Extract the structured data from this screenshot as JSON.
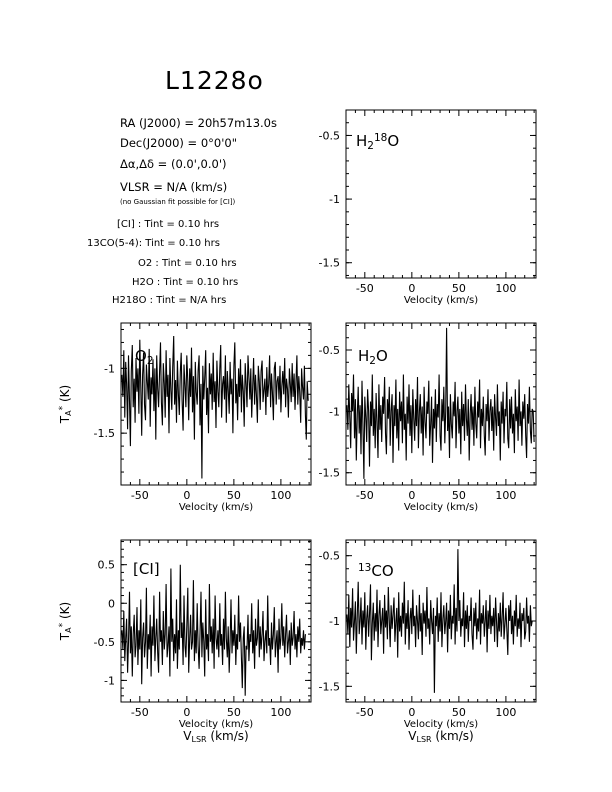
{
  "title": "L1228o",
  "info": {
    "ra": "RA (J2000) =  20h57m13.0s",
    "dec": "Dec(J2000) =  0°0'0\"",
    "offset": "Δα,Δδ = (0.0',0.0')",
    "vlsr": "VLSR  = N/A  (km/s)",
    "note": "(no Gaussian fit possible for [CI])",
    "integration": [
      "[CI] : Tint = 0.10 hrs",
      "13CO(5-4): Tint = 0.10 hrs",
      "O2 : Tint = 0.10 hrs",
      "H2O : Tint = 0.10 hrs",
      "H218O : Tint = N/A  hrs"
    ]
  },
  "chart_data": [
    {
      "id": "h218o",
      "type": "line",
      "label": "H218O",
      "xlabel": "Velocity (km/s)",
      "xlabel2": "",
      "ylabel": "",
      "xlim": [
        -70,
        132
      ],
      "ylim": [
        -1.62,
        -0.3
      ],
      "xticks": [
        -50,
        0,
        50,
        100
      ],
      "yticks": [
        -1.5,
        -1,
        -0.5
      ],
      "ytick_labels": [
        "-1.5",
        "-1",
        "-0.5"
      ],
      "series": []
    },
    {
      "id": "o2",
      "type": "line",
      "label": "O2",
      "xlabel": "Velocity (km/s)",
      "xlabel2": "",
      "ylabel": "TA* (K)",
      "xlim": [
        -70,
        132
      ],
      "ylim": [
        -1.9,
        -0.65
      ],
      "xticks": [
        -50,
        0,
        50,
        100
      ],
      "yticks": [
        -1.5,
        -1
      ],
      "ytick_labels": [
        "-1.5",
        "-1"
      ],
      "series": [
        {
          "x_start": -69,
          "x_step": 1.0,
          "values": [
            -1.05,
            -1.22,
            -0.86,
            -1.38,
            -0.95,
            -1.12,
            -1.47,
            -0.9,
            -1.25,
            -1.6,
            -1.02,
            -0.82,
            -1.3,
            -1.08,
            -1.42,
            -0.92,
            -1.18,
            -1.0,
            -1.35,
            -0.78,
            -1.15,
            -1.52,
            -1.05,
            -0.88,
            -1.28,
            -1.4,
            -0.97,
            -1.1,
            -1.24,
            -0.85,
            -1.45,
            -1.07,
            -1.2,
            -0.93,
            -1.33,
            -1.0,
            -1.55,
            -0.9,
            -1.16,
            -1.3,
            -1.02,
            -0.8,
            -1.26,
            -1.44,
            -0.96,
            -1.12,
            -1.38,
            -0.86,
            -1.22,
            -1.05,
            -1.5,
            -0.92,
            -1.17,
            -1.32,
            -0.99,
            -0.75,
            -1.28,
            -1.09,
            -1.42,
            -0.94,
            -1.2,
            -1.36,
            -1.03,
            -0.88,
            -1.25,
            -1.48,
            -0.97,
            -1.14,
            -1.3,
            -0.9,
            -1.1,
            -1.4,
            -1.0,
            -1.22,
            -0.84,
            -1.34,
            -1.06,
            -1.55,
            -0.95,
            -1.18,
            -1.28,
            -1.02,
            -0.9,
            -1.44,
            -1.12,
            -1.85,
            -0.98,
            -1.24,
            -1.08,
            -0.86,
            -1.36,
            -1.15,
            -1.5,
            -0.96,
            -1.2,
            -1.04,
            -1.32,
            -0.88,
            -1.26,
            -1.1,
            -1.46,
            -0.94,
            -1.18,
            -1.3,
            -1.0,
            -0.82,
            -1.38,
            -1.12,
            -1.06,
            -1.24,
            -0.9,
            -1.42,
            -1.02,
            -1.16,
            -1.35,
            -0.95,
            -1.2,
            -1.08,
            -1.5,
            -0.98,
            -0.8,
            -1.27,
            -1.12,
            -1.4,
            -1.0,
            -1.22,
            -0.93,
            -1.34,
            -1.05,
            -1.18,
            -1.45,
            -0.96,
            -1.12,
            -1.3,
            -0.9,
            -1.06,
            -1.24,
            -1.0,
            -1.38,
            -1.14,
            -0.92,
            -1.28,
            -1.05,
            -1.2,
            -1.42,
            -0.98,
            -1.1,
            -1.32,
            -1.02,
            -0.94,
            -1.26,
            -1.16,
            -1.08,
            -1.36,
            -0.99,
            -1.22,
            -1.12,
            -0.9,
            -1.3,
            -1.04,
            -1.18,
            -1.4,
            -1.0,
            -0.95,
            -1.28,
            -1.1,
            -1.06,
            -1.24,
            -0.98,
            -1.34,
            -1.14,
            -1.02,
            -1.2,
            -0.92,
            -1.3,
            -1.08,
            -1.16,
            -1.38,
            -1.0,
            -1.12,
            -1.26,
            -0.96,
            -1.22,
            -1.04,
            -1.32,
            -1.1,
            -0.9,
            -1.28,
            -1.06,
            -1.18,
            -1.42,
            -1.0,
            -1.14,
            -1.24,
            -0.98,
            -1.36,
            -1.55,
            -1.1,
            -1.25
          ]
        }
      ]
    },
    {
      "id": "h2o",
      "type": "line",
      "label": "H2O",
      "xlabel": "Velocity (km/s)",
      "xlabel2": "",
      "ylabel": "",
      "xlim": [
        -70,
        132
      ],
      "ylim": [
        -1.6,
        -0.28
      ],
      "xticks": [
        -50,
        0,
        50,
        100
      ],
      "yticks": [
        -1.5,
        -1,
        -0.5
      ],
      "ytick_labels": [
        "-1.5",
        "-1",
        "-0.5"
      ],
      "series": [
        {
          "x_start": -69,
          "x_step": 1.0,
          "values": [
            -0.95,
            -1.15,
            -0.78,
            -1.05,
            -1.3,
            -0.85,
            -1.0,
            -0.7,
            -1.22,
            -0.9,
            -1.4,
            -1.02,
            -0.8,
            -1.18,
            -0.95,
            -1.35,
            -0.75,
            -1.1,
            -1.55,
            -0.88,
            -1.05,
            -1.25,
            -0.82,
            -1.0,
            -1.45,
            -0.92,
            -1.12,
            -0.7,
            -1.2,
            -0.98,
            -1.3,
            -0.85,
            -1.08,
            -1.38,
            -0.78,
            -1.15,
            -0.95,
            -1.25,
            -0.88,
            -1.02,
            -0.72,
            -1.18,
            -1.35,
            -0.9,
            -1.06,
            -0.8,
            -1.28,
            -1.0,
            -0.86,
            -1.42,
            -0.95,
            -1.12,
            -0.74,
            -1.22,
            -0.98,
            -1.32,
            -0.84,
            -1.08,
            -0.92,
            -1.26,
            -0.7,
            -1.15,
            -1.02,
            -1.4,
            -0.88,
            -1.1,
            -0.78,
            -1.2,
            -0.95,
            -1.34,
            -0.82,
            -1.05,
            -1.24,
            -0.9,
            -1.12,
            -0.72,
            -1.3,
            -1.0,
            -0.86,
            -1.18,
            -0.96,
            -1.36,
            -0.8,
            -1.08,
            -1.22,
            -0.92,
            -1.02,
            -0.75,
            -1.28,
            -1.1,
            -0.88,
            -1.42,
            -0.98,
            -1.14,
            -0.82,
            -1.25,
            -0.94,
            -1.05,
            -0.7,
            -1.2,
            -1.32,
            -0.9,
            -1.08,
            -0.8,
            -1.26,
            -1.0,
            -0.32,
            -1.16,
            -0.96,
            -1.38,
            -0.86,
            -1.1,
            -1.22,
            -0.92,
            -1.04,
            -0.76,
            -1.3,
            -1.0,
            -0.88,
            -1.18,
            -0.98,
            -1.35,
            -0.84,
            -1.12,
            -0.94,
            -1.24,
            -0.78,
            -1.06,
            -1.2,
            -0.9,
            -1.4,
            -1.02,
            -0.86,
            -1.15,
            -0.96,
            -1.28,
            -0.8,
            -1.1,
            -1.22,
            -0.92,
            -1.05,
            -0.74,
            -1.3,
            -0.98,
            -1.12,
            -0.88,
            -1.2,
            -1.36,
            -0.94,
            -1.08,
            -0.82,
            -1.24,
            -1.0,
            -0.9,
            -1.16,
            -0.96,
            -1.32,
            -0.86,
            -1.06,
            -1.2,
            -0.78,
            -1.12,
            -1.0,
            -1.4,
            -0.92,
            -1.1,
            -0.84,
            -1.26,
            -0.98,
            -1.04,
            -0.76,
            -1.22,
            -1.3,
            -0.9,
            -1.14,
            -0.88,
            -1.18,
            -1.02,
            -1.34,
            -0.82,
            -1.08,
            -0.96,
            -1.24,
            -0.74,
            -1.12,
            -1.0,
            -1.28,
            -0.92,
            -1.06,
            -0.86,
            -1.2,
            -1.38,
            -0.94,
            -1.1,
            -0.8,
            -1.16,
            -1.26,
            -0.98,
            -1.0,
            -1.25
          ]
        }
      ]
    },
    {
      "id": "ci",
      "type": "line",
      "label": "[CI]",
      "xlabel": "Velocity (km/s)",
      "xlabel2": "VLSR (km/s)",
      "ylabel": "TA* (K)",
      "xlim": [
        -70,
        132
      ],
      "ylim": [
        -1.28,
        0.82
      ],
      "xticks": [
        -50,
        0,
        50,
        100
      ],
      "yticks": [
        -1,
        -0.5,
        0,
        0.5
      ],
      "ytick_labels": [
        "-1",
        "-0.5",
        "0",
        "0.5"
      ],
      "series": [
        {
          "x_start": -69,
          "x_step": 1.0,
          "values": [
            -0.35,
            -0.6,
            -0.1,
            -0.75,
            -0.45,
            -0.2,
            -0.9,
            -0.5,
            0.15,
            -0.65,
            -0.3,
            -0.95,
            -0.4,
            -0.15,
            -0.7,
            -0.55,
            -0.05,
            -0.8,
            -0.35,
            -0.6,
            0.05,
            -1.05,
            -0.45,
            -0.25,
            -0.7,
            -0.5,
            0.2,
            -0.85,
            -0.4,
            -0.6,
            -0.15,
            -0.95,
            -0.3,
            -0.55,
            0.1,
            -0.75,
            -0.45,
            -0.2,
            -0.65,
            -0.9,
            0.15,
            -0.5,
            -0.35,
            -0.8,
            -0.1,
            -0.6,
            -0.4,
            0.25,
            -0.7,
            -0.55,
            -0.3,
            -0.95,
            0.45,
            -0.5,
            -0.2,
            -0.75,
            -0.4,
            -0.65,
            0.05,
            -0.85,
            -0.35,
            -0.6,
            0.5,
            -0.45,
            -0.25,
            -0.8,
            0.1,
            -0.55,
            -0.7,
            -0.3,
            0.2,
            -0.9,
            -0.45,
            -0.15,
            -0.6,
            -0.5,
            0.3,
            -0.75,
            -0.35,
            -0.65,
            0.0,
            -0.55,
            -0.85,
            -0.4,
            0.15,
            -0.7,
            -0.25,
            -0.5,
            -0.95,
            0.05,
            -0.6,
            -0.4,
            -0.75,
            0.25,
            -0.5,
            -0.3,
            -0.65,
            -0.2,
            -0.85,
            0.1,
            -0.45,
            -0.6,
            -0.35,
            -0.7,
            0.0,
            -0.55,
            -0.4,
            -0.8,
            -0.2,
            -0.6,
            0.15,
            -0.45,
            -0.7,
            -0.3,
            -0.9,
            -0.5,
            0.05,
            -0.65,
            -0.35,
            -0.55,
            -0.15,
            -0.8,
            -0.4,
            -0.6,
            0.1,
            -0.5,
            -0.25,
            -0.7,
            -1.1,
            -0.45,
            -0.3,
            -1.2,
            -0.55,
            -0.6,
            -0.15,
            -0.75,
            -0.4,
            -0.5,
            0.0,
            -0.65,
            -0.35,
            -0.85,
            -0.2,
            -0.55,
            -0.45,
            0.05,
            -0.7,
            -0.3,
            -0.6,
            -0.4,
            -0.1,
            -0.75,
            -0.5,
            -0.35,
            -0.65,
            0.1,
            -0.55,
            -0.45,
            -0.8,
            -0.25,
            -0.6,
            -0.4,
            -0.05,
            -0.7,
            -0.5,
            -0.35,
            -0.9,
            -0.2,
            -0.6,
            -0.45,
            0.0,
            -0.55,
            -0.3,
            -0.7,
            -0.4,
            -0.15,
            -0.65,
            -0.5,
            -0.35,
            -0.8,
            -0.25,
            -0.55,
            -0.45,
            -0.1,
            -0.6,
            -0.4,
            -0.7,
            -0.3,
            -0.5,
            -0.2,
            -0.65,
            -0.45,
            -0.55,
            -0.35,
            -0.6,
            -0.4
          ]
        }
      ]
    },
    {
      "id": "13co",
      "type": "line",
      "label": "13CO",
      "xlabel": "Velocity (km/s)",
      "xlabel2": "VLSR (km/s)",
      "ylabel": "",
      "xlim": [
        -70,
        132
      ],
      "ylim": [
        -1.62,
        -0.38
      ],
      "xticks": [
        -50,
        0,
        50,
        100
      ],
      "yticks": [
        -1.5,
        -1,
        -0.5
      ],
      "ytick_labels": [
        "-1.5",
        "-1",
        "-0.5"
      ],
      "series": [
        {
          "x_start": -69,
          "x_step": 1.0,
          "values": [
            -0.95,
            -1.1,
            -0.8,
            -1.2,
            -0.9,
            -1.05,
            -0.75,
            -1.15,
            -1.0,
            -0.85,
            -1.25,
            -0.95,
            -0.7,
            -1.1,
            -1.0,
            -0.82,
            -1.18,
            -0.92,
            -1.05,
            -0.78,
            -1.22,
            -0.98,
            -0.88,
            -1.12,
            -0.95,
            -0.72,
            -1.3,
            -1.02,
            -0.86,
            -1.15,
            -0.94,
            -1.08,
            -0.76,
            -1.2,
            -0.96,
            -0.84,
            -1.1,
            -1.0,
            -0.9,
            -1.25,
            -0.8,
            -1.05,
            -0.92,
            -1.14,
            -0.74,
            -1.0,
            -1.2,
            -0.88,
            -1.06,
            -0.95,
            -0.82,
            -1.16,
            -1.0,
            -0.9,
            -1.28,
            -0.78,
            -1.08,
            -0.96,
            -1.12,
            -0.86,
            -1.02,
            -0.7,
            -1.18,
            -0.94,
            -1.06,
            -0.84,
            -1.22,
            -0.98,
            -0.9,
            -1.1,
            -0.76,
            -1.04,
            -0.96,
            -1.2,
            -0.88,
            -1.0,
            -1.14,
            -0.8,
            -1.08,
            -0.94,
            -1.26,
            -0.86,
            -1.02,
            -0.92,
            -1.12,
            -0.74,
            -1.06,
            -0.98,
            -1.18,
            -0.84,
            -1.0,
            -1.1,
            -0.9,
            -1.55,
            -0.96,
            -1.04,
            -0.82,
            -1.16,
            -0.94,
            -1.08,
            -0.78,
            -1.2,
            -0.98,
            -0.88,
            -1.1,
            -1.0,
            -0.86,
            -1.24,
            -0.92,
            -1.06,
            -0.8,
            -1.14,
            -0.96,
            -1.02,
            -0.72,
            -1.18,
            -0.9,
            -1.08,
            -0.45,
            -1.0,
            -0.84,
            -1.12,
            -0.98,
            -1.04,
            -0.78,
            -1.2,
            -0.92,
            -1.06,
            -0.88,
            -1.16,
            -0.96,
            -1.0,
            -0.82,
            -1.1,
            -1.22,
            -0.9,
            -1.04,
            -0.86,
            -1.14,
            -0.98,
            -1.08,
            -0.76,
            -1.18,
            -0.94,
            -1.02,
            -0.88,
            -1.12,
            -1.0,
            -0.84,
            -1.24,
            -0.92,
            -1.06,
            -0.8,
            -1.1,
            -0.96,
            -1.04,
            -0.9,
            -1.16,
            -0.82,
            -1.0,
            -1.2,
            -0.94,
            -1.08,
            -0.86,
            -1.12,
            -0.98,
            -0.78,
            -1.14,
            -1.02,
            -0.9,
            -1.06,
            -1.26,
            -0.88,
            -1.0,
            -0.84,
            -1.1,
            -0.96,
            -1.18,
            -0.92,
            -1.04,
            -0.8,
            -1.12,
            -0.98,
            -1.06,
            -0.86,
            -1.2,
            -0.94,
            -1.0,
            -0.9,
            -1.14,
            -1.08,
            -0.82,
            -1.02,
            -0.96,
            -1.16,
            -0.88,
            -1.04,
            -1.0
          ]
        }
      ]
    }
  ]
}
